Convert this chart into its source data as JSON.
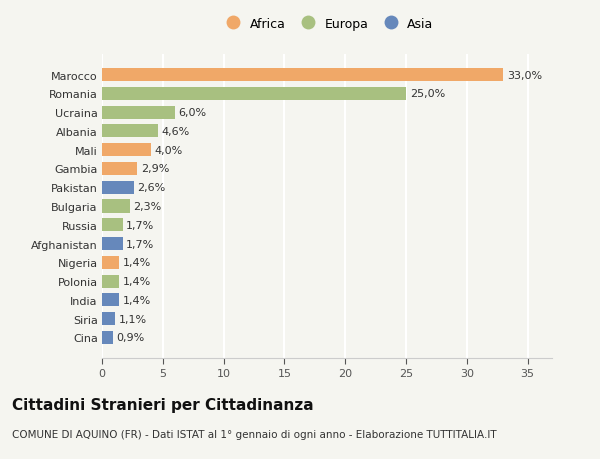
{
  "countries": [
    "Marocco",
    "Romania",
    "Ucraina",
    "Albania",
    "Mali",
    "Gambia",
    "Pakistan",
    "Bulgaria",
    "Russia",
    "Afghanistan",
    "Nigeria",
    "Polonia",
    "India",
    "Siria",
    "Cina"
  ],
  "values": [
    33.0,
    25.0,
    6.0,
    4.6,
    4.0,
    2.9,
    2.6,
    2.3,
    1.7,
    1.7,
    1.4,
    1.4,
    1.4,
    1.1,
    0.9
  ],
  "continents": [
    "Africa",
    "Europa",
    "Europa",
    "Europa",
    "Africa",
    "Africa",
    "Asia",
    "Europa",
    "Europa",
    "Asia",
    "Africa",
    "Europa",
    "Asia",
    "Asia",
    "Asia"
  ],
  "colors": {
    "Africa": "#F0A868",
    "Europa": "#A8C080",
    "Asia": "#6688BB"
  },
  "title": "Cittadini Stranieri per Cittadinanza",
  "subtitle": "COMUNE DI AQUINO (FR) - Dati ISTAT al 1° gennaio di ogni anno - Elaborazione TUTTITALIA.IT",
  "xlim": [
    0,
    37
  ],
  "xticks": [
    0,
    5,
    10,
    15,
    20,
    25,
    30,
    35
  ],
  "background_color": "#F5F5F0",
  "grid_color": "#FFFFFF",
  "bar_height": 0.7,
  "title_fontsize": 11,
  "subtitle_fontsize": 7.5,
  "tick_fontsize": 8,
  "label_fontsize": 8,
  "legend_fontsize": 9
}
